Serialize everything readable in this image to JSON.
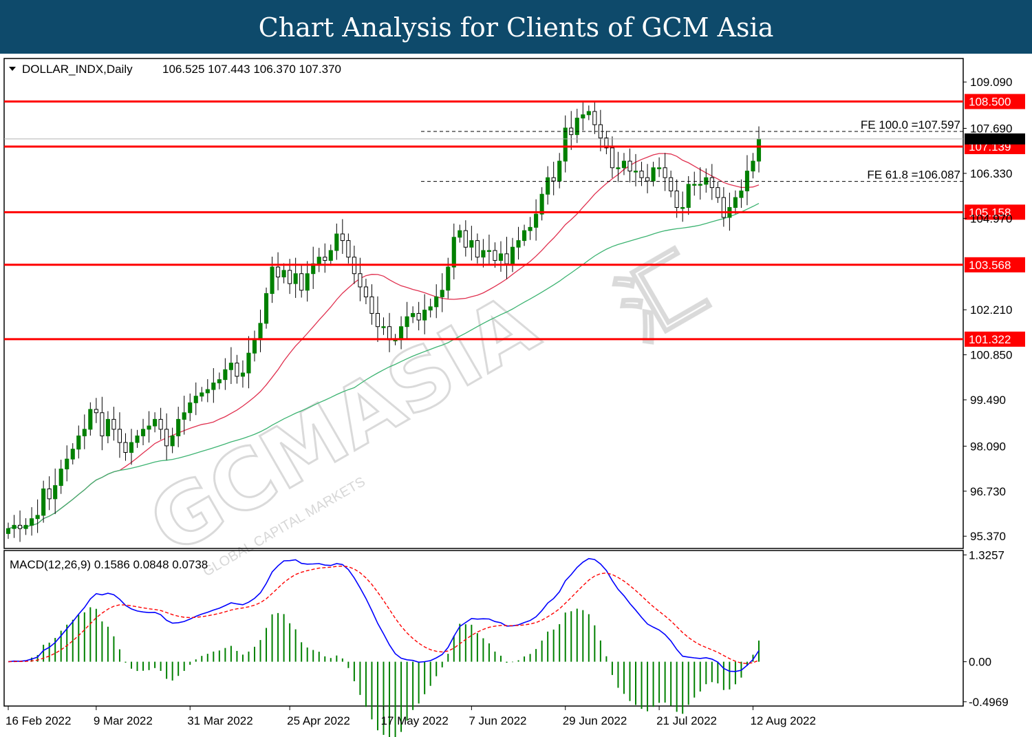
{
  "banner": {
    "title": "Chart Analysis for Clients of GCM Asia"
  },
  "header": {
    "symbol": "DOLLAR_INDX,Daily",
    "ohlc": "106.525 107.443 106.370 107.370"
  },
  "watermark": {
    "brand": "GCMASIA",
    "chinese": "汇",
    "tagline": "GLOBAL CAPITAL MARKETS"
  },
  "colors": {
    "candle_up": "#008000",
    "candle_down": "#000000",
    "level": "#ff0000",
    "sma20": "#e0304f",
    "sma100": "#3cb371",
    "macd": "#0000ff",
    "signal": "#ff0000",
    "hist": "#008000"
  },
  "chart_data": [
    {
      "type": "candlestick",
      "ylim": [
        95.0,
        109.8
      ],
      "yticks": [
        "109.090",
        "107.690",
        "106.330",
        "104.970",
        "102.210",
        "100.850",
        "99.490",
        "98.090",
        "96.730",
        "95.370"
      ],
      "xticks": [
        "16 Feb 2022",
        "9 Mar 2022",
        "31 Mar 2022",
        "25 Apr 2022",
        "17 May 2022",
        "7 Jun 2022",
        "29 Jun 2022",
        "21 Jul 2022",
        "12 Aug 2022"
      ],
      "levels": [
        {
          "value": 108.5,
          "label": "108.500"
        },
        {
          "value": 107.139,
          "label": "107.139"
        },
        {
          "value": 105.158,
          "label": "105.158"
        },
        {
          "value": 103.568,
          "label": "103.568"
        },
        {
          "value": 101.322,
          "label": "101.322"
        }
      ],
      "fib": [
        {
          "value": 107.597,
          "label": "FE 100.0 =107.597"
        },
        {
          "value": 106.087,
          "label": "FE 61.8 =106.087"
        }
      ],
      "last_price": 107.37,
      "closes": [
        95.6,
        95.7,
        95.6,
        95.7,
        95.9,
        96.0,
        96.8,
        96.5,
        96.9,
        97.4,
        97.7,
        98.0,
        98.4,
        98.6,
        99.2,
        99.1,
        98.4,
        98.9,
        98.6,
        98.2,
        97.9,
        98.2,
        98.4,
        98.6,
        98.7,
        98.9,
        98.6,
        98.1,
        98.4,
        98.9,
        99.1,
        99.4,
        99.6,
        99.7,
        99.8,
        100.0,
        100.1,
        100.4,
        100.6,
        100.2,
        100.3,
        100.9,
        101.3,
        101.8,
        102.7,
        103.5,
        103.2,
        103.4,
        103.0,
        103.3,
        102.8,
        103.3,
        103.6,
        103.8,
        103.7,
        104.0,
        104.5,
        104.3,
        103.8,
        103.3,
        102.9,
        102.6,
        102.1,
        101.7,
        101.7,
        101.3,
        101.3,
        101.7,
        102.0,
        102.1,
        101.9,
        102.2,
        102.3,
        102.6,
        102.8,
        103.5,
        104.4,
        104.6,
        104.1,
        104.3,
        103.8,
        104.0,
        104.0,
        103.7,
        103.9,
        103.6,
        104.1,
        104.3,
        104.6,
        104.7,
        105.1,
        105.7,
        106.2,
        106.1,
        106.7,
        107.7,
        107.5,
        108.0,
        108.1,
        108.2,
        107.8,
        107.4,
        107.1,
        106.5,
        106.5,
        106.7,
        106.4,
        106.4,
        106.2,
        106.1,
        106.5,
        106.5,
        106.2,
        105.8,
        105.3,
        105.3,
        106.0,
        106.0,
        106.0,
        106.2,
        105.9,
        105.6,
        105.0,
        105.3,
        105.6,
        105.8,
        106.4,
        106.7,
        107.37
      ]
    },
    {
      "type": "macd",
      "label": "MACD(12,26,9) 0.1586 0.0848 0.0738",
      "ylim": [
        -0.55,
        1.38
      ],
      "yticks": [
        "1.3257",
        "0.00",
        "-0.4969"
      ]
    }
  ]
}
